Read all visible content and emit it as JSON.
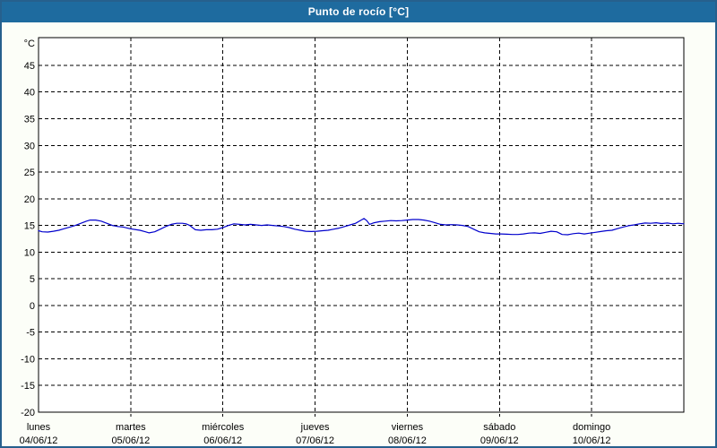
{
  "title": "Punto de rocío [°C]",
  "colors": {
    "titlebar_bg": "#1E6B9F",
    "title_text": "#FFFFFF",
    "frame_border": "#26608D",
    "content_bg": "#FCFEF8",
    "plot_bg": "#FFFFFF",
    "plot_border": "#000000",
    "grid": "#000000",
    "label": "#000000",
    "line": "#0000CC"
  },
  "chart_data": {
    "type": "line",
    "title": "Punto de rocío [°C]",
    "ylabel": "°C",
    "xlabel": "",
    "ylim": [
      -20,
      50.2
    ],
    "yticks": [
      45,
      40,
      35,
      30,
      25,
      20,
      15,
      10,
      5,
      0,
      -5,
      -10,
      -15,
      -20
    ],
    "grid": "dashed",
    "legend_position": "none",
    "x_axis_days": [
      {
        "name": "lunes",
        "date": "04/06/12"
      },
      {
        "name": "martes",
        "date": "05/06/12"
      },
      {
        "name": "miércoles",
        "date": "06/06/12"
      },
      {
        "name": "jueves",
        "date": "07/06/12"
      },
      {
        "name": "viernes",
        "date": "08/06/12"
      },
      {
        "name": "sábado",
        "date": "09/06/12"
      },
      {
        "name": "domingo",
        "date": "10/06/12"
      }
    ],
    "series": [
      {
        "name": "Punto de rocío",
        "color": "#0000CC",
        "x_days": [
          0.0,
          0.04,
          0.1,
          0.16,
          0.22,
          0.28,
          0.34,
          0.4,
          0.46,
          0.52,
          0.56,
          0.62,
          0.68,
          0.74,
          0.8,
          0.86,
          0.92,
          0.99,
          1.06,
          1.1,
          1.16,
          1.2,
          1.26,
          1.32,
          1.38,
          1.44,
          1.5,
          1.56,
          1.6,
          1.64,
          1.7,
          1.76,
          1.82,
          1.88,
          1.94,
          2.0,
          2.06,
          2.12,
          2.18,
          2.24,
          2.3,
          2.36,
          2.42,
          2.48,
          2.54,
          2.6,
          2.66,
          2.72,
          2.78,
          2.84,
          2.9,
          2.96,
          3.02,
          3.08,
          3.14,
          3.2,
          3.26,
          3.32,
          3.38,
          3.44,
          3.5,
          3.53,
          3.56,
          3.59,
          3.64,
          3.7,
          3.76,
          3.82,
          3.88,
          3.94,
          4.0,
          4.06,
          4.12,
          4.18,
          4.24,
          4.3,
          4.36,
          4.42,
          4.48,
          4.54,
          4.6,
          4.66,
          4.72,
          4.78,
          4.84,
          4.9,
          4.96,
          5.02,
          5.08,
          5.14,
          5.2,
          5.26,
          5.32,
          5.38,
          5.44,
          5.5,
          5.56,
          5.62,
          5.68,
          5.74,
          5.8,
          5.86,
          5.92,
          5.98,
          6.04,
          6.1,
          6.16,
          6.22,
          6.28,
          6.34,
          6.4,
          6.46,
          6.52,
          6.58,
          6.64,
          6.7,
          6.76,
          6.82,
          6.88,
          6.94,
          7.0
        ],
        "values": [
          14.0,
          13.8,
          13.75,
          13.9,
          14.1,
          14.4,
          14.7,
          15.0,
          15.4,
          15.8,
          16.0,
          16.0,
          15.8,
          15.4,
          15.0,
          14.8,
          14.7,
          14.4,
          14.2,
          14.1,
          13.8,
          13.6,
          13.8,
          14.3,
          14.8,
          15.2,
          15.4,
          15.4,
          15.3,
          15.0,
          14.2,
          14.1,
          14.2,
          14.2,
          14.3,
          14.6,
          15.0,
          15.3,
          15.2,
          15.1,
          15.2,
          15.1,
          15.0,
          15.1,
          15.0,
          14.9,
          14.8,
          14.6,
          14.3,
          14.1,
          13.9,
          13.85,
          13.9,
          14.0,
          14.1,
          14.3,
          14.5,
          14.8,
          15.1,
          15.4,
          16.0,
          16.3,
          15.9,
          15.2,
          15.5,
          15.7,
          15.8,
          15.9,
          15.85,
          15.9,
          16.0,
          16.1,
          16.1,
          16.0,
          15.8,
          15.5,
          15.2,
          15.1,
          15.15,
          15.1,
          15.0,
          14.8,
          14.3,
          13.8,
          13.6,
          13.5,
          13.4,
          13.4,
          13.35,
          13.3,
          13.3,
          13.4,
          13.55,
          13.6,
          13.5,
          13.7,
          13.9,
          13.8,
          13.3,
          13.25,
          13.45,
          13.55,
          13.4,
          13.55,
          13.7,
          13.85,
          14.0,
          14.1,
          14.4,
          14.7,
          14.95,
          15.1,
          15.3,
          15.45,
          15.4,
          15.5,
          15.35,
          15.45,
          15.3,
          15.4,
          15.3
        ]
      }
    ]
  }
}
